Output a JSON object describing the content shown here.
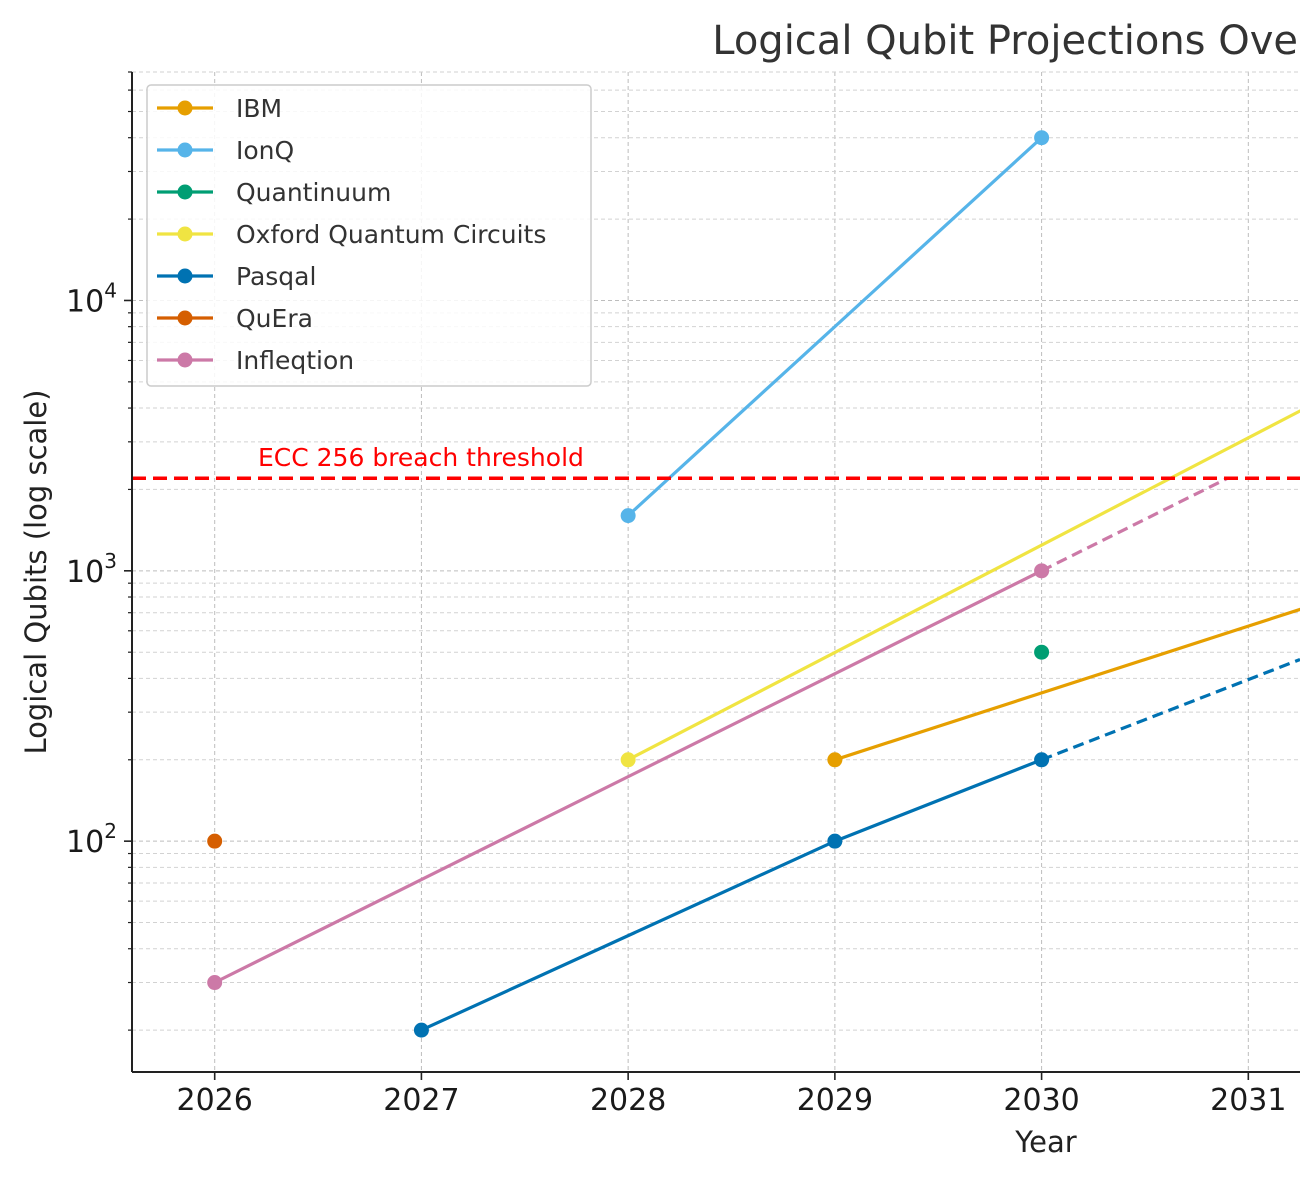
{
  "chart_data": {
    "type": "line",
    "title": "Logical Qubit Projections Ove",
    "xlabel": "Year",
    "ylabel": "Logical Qubits (log scale)",
    "y_scale": "log",
    "xlim": [
      2025.6,
      2031.25
    ],
    "ylim": [
      14,
      70000
    ],
    "x_ticks": [
      "2026",
      "2027",
      "2028",
      "2029",
      "2030",
      "2031"
    ],
    "y_ticks": [
      {
        "base": "10",
        "exp": "2",
        "value": 100
      },
      {
        "base": "10",
        "exp": "3",
        "value": 1000
      },
      {
        "base": "10",
        "exp": "4",
        "value": 10000
      }
    ],
    "grid": true,
    "legend_position": "upper-left",
    "threshold": {
      "label": "ECC 256 breach threshold",
      "value": 2200,
      "color": "#ff0000",
      "style": "dashed"
    },
    "series": [
      {
        "name": "IBM",
        "color": "#E69F00",
        "points": [
          [
            2029,
            200
          ]
        ],
        "solid": [
          [
            2029,
            200
          ],
          [
            2031.25,
            720
          ]
        ],
        "dashed": []
      },
      {
        "name": "IonQ",
        "color": "#56B4E9",
        "points": [
          [
            2028,
            1600
          ],
          [
            2030,
            40000
          ]
        ],
        "solid": [
          [
            2028,
            1600
          ],
          [
            2030,
            40000
          ]
        ],
        "dashed": []
      },
      {
        "name": "Quantinuum",
        "color": "#009E73",
        "points": [
          [
            2030,
            500
          ]
        ],
        "solid": [],
        "dashed": []
      },
      {
        "name": "Oxford Quantum Circuits",
        "color": "#F0E442",
        "points": [
          [
            2028,
            200
          ]
        ],
        "solid": [
          [
            2028,
            200
          ],
          [
            2031.25,
            3900
          ]
        ],
        "dashed": []
      },
      {
        "name": "Pasqal",
        "color": "#0072B2",
        "points": [
          [
            2027,
            20
          ],
          [
            2029,
            100
          ],
          [
            2030,
            200
          ]
        ],
        "solid": [
          [
            2027,
            20
          ],
          [
            2029,
            100
          ],
          [
            2030,
            200
          ]
        ],
        "dashed": [
          [
            2030,
            200
          ],
          [
            2031.25,
            470
          ]
        ]
      },
      {
        "name": "QuEra",
        "color": "#D55E00",
        "points": [
          [
            2026,
            100
          ]
        ],
        "solid": [],
        "dashed": []
      },
      {
        "name": "Infleqtion",
        "color": "#CC79A7",
        "points": [
          [
            2026,
            30
          ],
          [
            2030,
            1000
          ]
        ],
        "solid": [
          [
            2026,
            30
          ],
          [
            2030,
            1000
          ]
        ],
        "dashed": [
          [
            2030,
            1000
          ],
          [
            2030.9,
            2200
          ]
        ]
      }
    ]
  }
}
